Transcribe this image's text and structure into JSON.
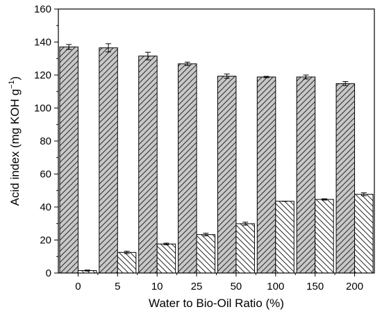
{
  "chart_data": {
    "type": "bar",
    "categories": [
      "0",
      "5",
      "10",
      "25",
      "50",
      "100",
      "150",
      "200"
    ],
    "series": [
      {
        "values": [
          137,
          136.5,
          131.5,
          126.8,
          119.3,
          118.8,
          118.8,
          114.8
        ],
        "errors": [
          1.5,
          2.5,
          2.3,
          1.0,
          1.3,
          0.4,
          1.2,
          1.2
        ],
        "pattern": "forward-hatch",
        "fill": "#c8c8c8"
      },
      {
        "values": [
          1.5,
          12.5,
          17.6,
          23.3,
          29.9,
          43.5,
          44.6,
          47.7
        ],
        "errors": [
          0.3,
          0.7,
          0.5,
          0.8,
          0.9,
          0.0,
          0.4,
          0.9
        ],
        "pattern": "back-hatch",
        "fill": "#ffffff"
      }
    ],
    "xlabel": "Water to Bio-Oil Ratio (%)",
    "ylabel": "Acid index (mg KOH g",
    "ylabel_sup": "−1",
    "ylabel_end": ")",
    "ylim": [
      0,
      160
    ],
    "yticks": [
      "0",
      "20",
      "40",
      "60",
      "80",
      "100",
      "120",
      "140",
      "160"
    ],
    "grid": false,
    "legend": "none"
  }
}
